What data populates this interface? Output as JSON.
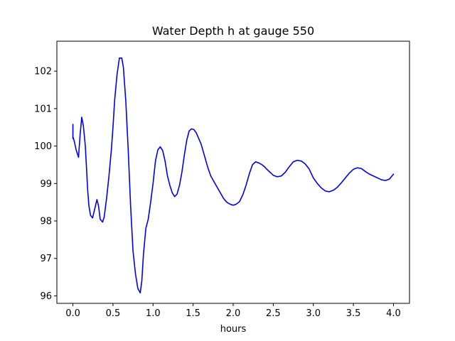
{
  "chart_data": {
    "type": "line",
    "title": "Water Depth h at gauge 550",
    "xlabel": "hours",
    "ylabel": "",
    "xlim": [
      -0.2,
      4.2
    ],
    "ylim": [
      95.8,
      102.8
    ],
    "xticks": [
      0.0,
      0.5,
      1.0,
      1.5,
      2.0,
      2.5,
      3.0,
      3.5,
      4.0
    ],
    "xtick_labels": [
      "0.0",
      "0.5",
      "1.0",
      "1.5",
      "2.0",
      "2.5",
      "3.0",
      "3.5",
      "4.0"
    ],
    "yticks": [
      96,
      97,
      98,
      99,
      100,
      101,
      102
    ],
    "ytick_labels": [
      "96",
      "97",
      "98",
      "99",
      "100",
      "101",
      "102"
    ],
    "grid": false,
    "series": [
      {
        "color": "#0000ee",
        "x": [
          0.0,
          0.0,
          0.005,
          0.02,
          0.04,
          0.07,
          0.09,
          0.11,
          0.13,
          0.155,
          0.17,
          0.185,
          0.2,
          0.22,
          0.245,
          0.27,
          0.3,
          0.32,
          0.34,
          0.37,
          0.39,
          0.42,
          0.45,
          0.48,
          0.5,
          0.52,
          0.55,
          0.58,
          0.61,
          0.63,
          0.66,
          0.69,
          0.72,
          0.75,
          0.78,
          0.81,
          0.84,
          0.86,
          0.88,
          0.91,
          0.94,
          0.97,
          1.0,
          1.03,
          1.06,
          1.09,
          1.12,
          1.15,
          1.18,
          1.21,
          1.24,
          1.27,
          1.3,
          1.33,
          1.36,
          1.39,
          1.42,
          1.45,
          1.48,
          1.51,
          1.54,
          1.57,
          1.6,
          1.64,
          1.68,
          1.72,
          1.76,
          1.8,
          1.84,
          1.88,
          1.92,
          1.96,
          2.0,
          2.04,
          2.08,
          2.12,
          2.16,
          2.2,
          2.24,
          2.28,
          2.32,
          2.36,
          2.39,
          2.42,
          2.46,
          2.5,
          2.55,
          2.6,
          2.65,
          2.7,
          2.75,
          2.8,
          2.85,
          2.9,
          2.95,
          3.0,
          3.05,
          3.1,
          3.15,
          3.2,
          3.25,
          3.3,
          3.35,
          3.4,
          3.45,
          3.5,
          3.55,
          3.6,
          3.65,
          3.7,
          3.75,
          3.8,
          3.85,
          3.9,
          3.95,
          4.0
        ],
        "y": [
          100.58,
          100.2,
          100.22,
          100.1,
          99.9,
          99.7,
          100.3,
          100.77,
          100.55,
          100.0,
          99.4,
          98.8,
          98.4,
          98.15,
          98.08,
          98.3,
          98.57,
          98.4,
          98.05,
          97.97,
          98.1,
          98.6,
          99.2,
          99.9,
          100.5,
          101.2,
          101.9,
          102.35,
          102.35,
          102.1,
          101.2,
          99.9,
          98.4,
          97.2,
          96.6,
          96.2,
          96.08,
          96.4,
          97.1,
          97.8,
          98.05,
          98.5,
          99.0,
          99.6,
          99.9,
          99.98,
          99.88,
          99.6,
          99.2,
          98.95,
          98.75,
          98.65,
          98.72,
          98.95,
          99.3,
          99.75,
          100.15,
          100.4,
          100.46,
          100.44,
          100.35,
          100.2,
          100.05,
          99.75,
          99.45,
          99.2,
          99.05,
          98.9,
          98.75,
          98.6,
          98.5,
          98.45,
          98.42,
          98.45,
          98.52,
          98.7,
          98.95,
          99.25,
          99.5,
          99.58,
          99.55,
          99.5,
          99.45,
          99.38,
          99.3,
          99.22,
          99.18,
          99.2,
          99.3,
          99.45,
          99.58,
          99.62,
          99.6,
          99.52,
          99.38,
          99.15,
          99.0,
          98.88,
          98.8,
          98.78,
          98.82,
          98.9,
          99.02,
          99.15,
          99.28,
          99.38,
          99.42,
          99.4,
          99.32,
          99.25,
          99.2,
          99.15,
          99.1,
          99.08,
          99.12,
          99.25
        ]
      }
    ]
  }
}
